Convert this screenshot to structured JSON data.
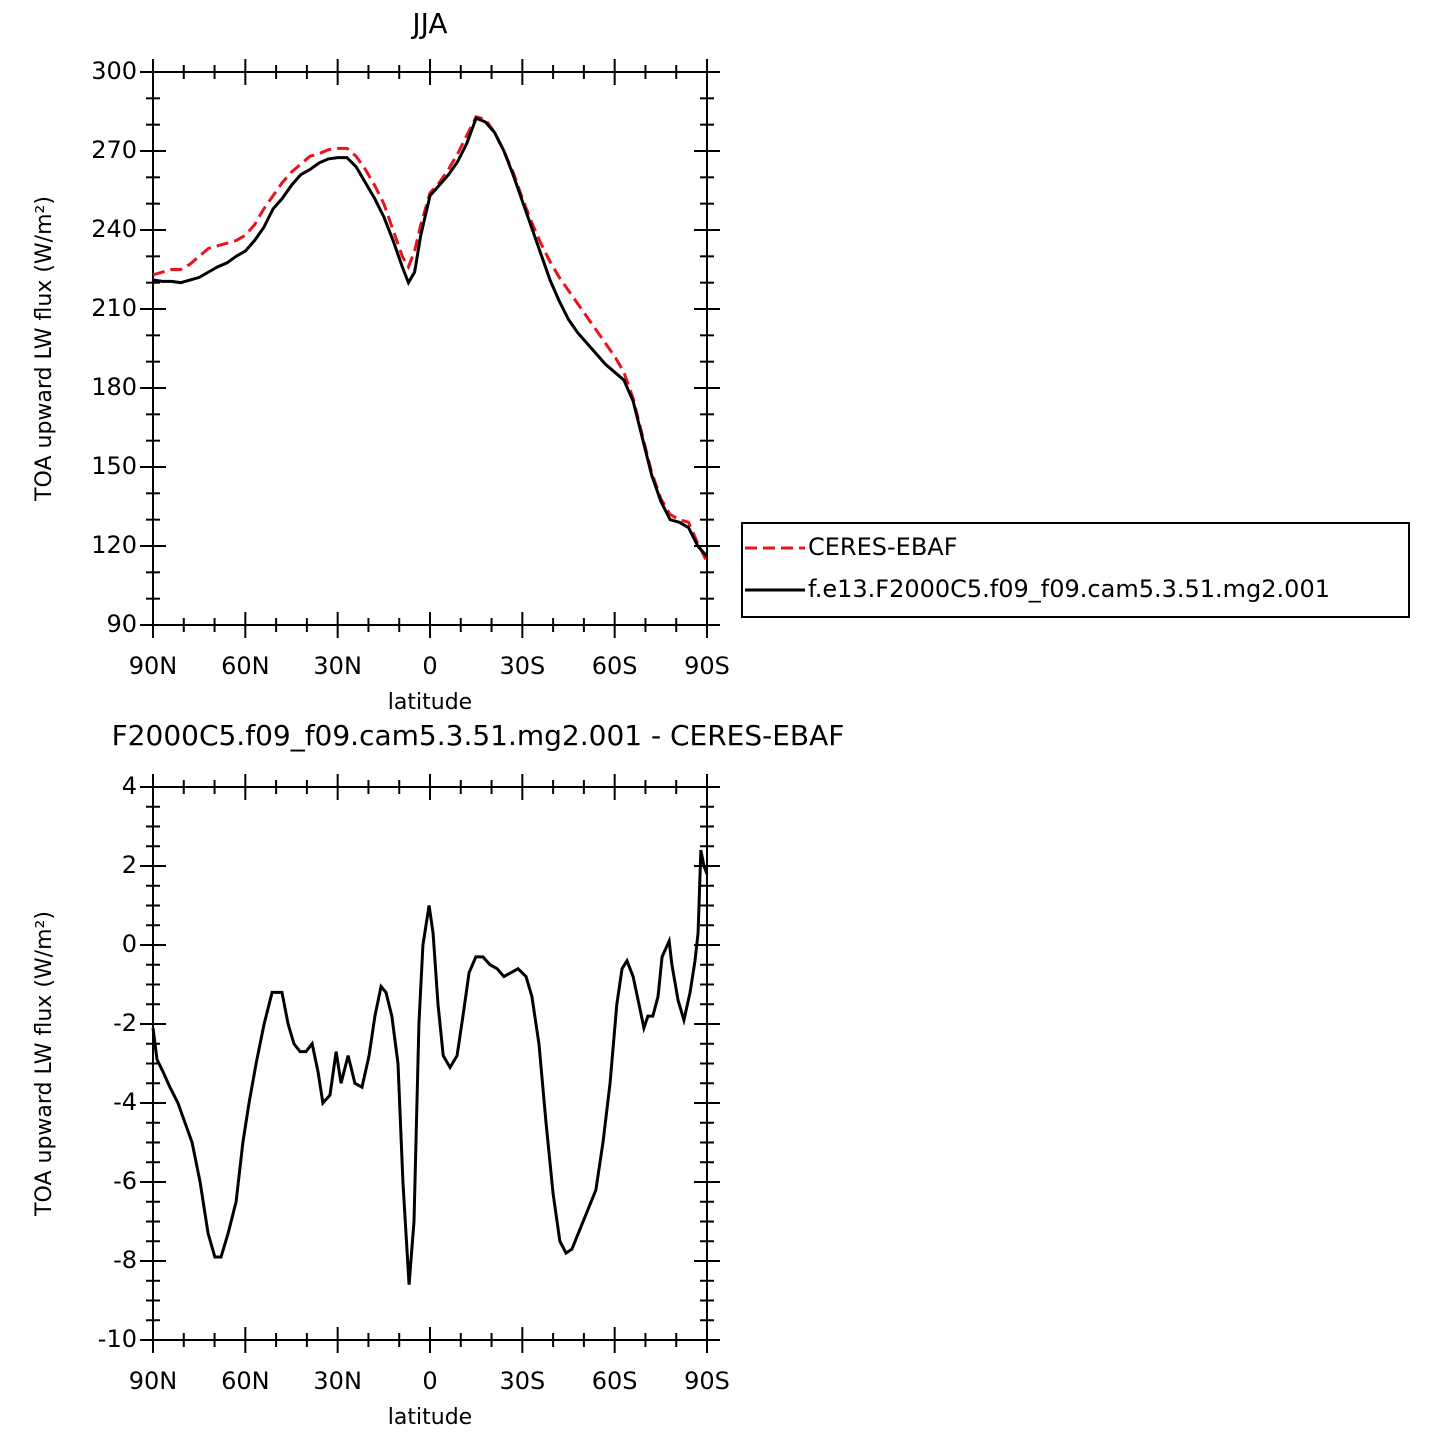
{
  "chart_data": [
    {
      "type": "line",
      "title": "JJA",
      "x_label": "latitude",
      "y_label": "TOA upward LW flux (W/m²)",
      "x": [
        90,
        87,
        84,
        81,
        78,
        75,
        72,
        69,
        66,
        63,
        60,
        57,
        54,
        51,
        48,
        45,
        42,
        39,
        36,
        33,
        30,
        27,
        24,
        21,
        18,
        15,
        12,
        9,
        7,
        5,
        3,
        0,
        -3,
        -6,
        -9,
        -12,
        -15,
        -18,
        -21,
        -24,
        -27,
        -30,
        -33,
        -36,
        -39,
        -42,
        -45,
        -48,
        -51,
        -54,
        -57,
        -60,
        -63,
        -66,
        -69,
        -72,
        -75,
        -78,
        -81,
        -84,
        -87,
        -90
      ],
      "series": [
        {
          "name": "CERES-EBAF",
          "color": "#e8141b",
          "line_style": "dashed",
          "values": [
            223,
            224,
            225,
            225,
            227,
            230,
            233,
            234,
            235,
            236,
            238,
            242,
            248,
            253,
            258,
            262,
            265,
            268,
            269,
            270.5,
            271,
            271,
            268,
            263,
            257,
            250,
            240,
            230,
            226,
            232,
            242,
            254,
            258,
            263,
            269,
            276,
            283,
            282,
            277,
            270,
            262,
            252,
            243,
            235,
            228,
            222,
            217,
            212,
            207,
            202,
            197,
            192,
            186,
            176,
            162,
            148,
            138,
            132,
            130,
            129,
            121,
            114
          ]
        },
        {
          "name": "f.e13.F2000C5.f09_f09.cam5.3.51.mg2.001",
          "color": "#000000",
          "line_style": "solid",
          "values": [
            221,
            220.5,
            220.5,
            220,
            221,
            222,
            224,
            226,
            227.5,
            230,
            232,
            236,
            241,
            248,
            252,
            257,
            261,
            263,
            265.5,
            267,
            267.5,
            267.5,
            264,
            258,
            252,
            245,
            236,
            226,
            220,
            224,
            238,
            253,
            257,
            261,
            266,
            273,
            282.5,
            281,
            277,
            270,
            261,
            251,
            241,
            231,
            221,
            213,
            206,
            201,
            197,
            193,
            189,
            186,
            183,
            175,
            161,
            147,
            137,
            130,
            129,
            127,
            120,
            116
          ]
        }
      ],
      "xlim": [
        90,
        -90
      ],
      "xticks": [
        {
          "value": 90,
          "label": "90N"
        },
        {
          "value": 60,
          "label": "60N"
        },
        {
          "value": 30,
          "label": "30N"
        },
        0,
        {
          "value": -30,
          "label": "30S"
        },
        {
          "value": -60,
          "label": "60S"
        },
        {
          "value": -90,
          "label": "90S"
        }
      ],
      "ylim": [
        90,
        300
      ],
      "yticks": [
        90,
        120,
        150,
        180,
        210,
        240,
        270,
        300
      ],
      "grid": false,
      "legend": "right"
    },
    {
      "type": "line",
      "title": "F2000C5.f09_f09.cam5.3.51.mg2.001 - CERES-EBAF",
      "x_label": "latitude",
      "y_label": "TOA upward LW flux (W/m²)",
      "x": [
        90,
        88.7,
        86.8,
        84.5,
        81.9,
        79.6,
        77.3,
        74.7,
        72.1,
        69.9,
        67.9,
        65.6,
        63,
        60.8,
        58.8,
        56.5,
        53.9,
        51.3,
        48.1,
        46.1,
        44.2,
        42.2,
        40.3,
        38.3,
        36.4,
        34.8,
        32.5,
        30.5,
        28.9,
        26.6,
        24.4,
        22.1,
        19.8,
        17.9,
        15.9,
        14.3,
        12.4,
        10.4,
        8.8,
        6.8,
        5.2,
        3.6,
        2.3,
        0.3,
        -1,
        -2.6,
        -4.3,
        -6.5,
        -8.8,
        -10.7,
        -12.7,
        -14.9,
        -17.2,
        -19.5,
        -21.8,
        -24,
        -26.3,
        -28.6,
        -31.2,
        -33.1,
        -35.4,
        -37.7,
        -40,
        -42.2,
        -44.2,
        -46.1,
        -48.7,
        -51.3,
        -53.9,
        -56.2,
        -58.5,
        -60.7,
        -62.4,
        -64,
        -66,
        -67.9,
        -69.5,
        -70.8,
        -72.4,
        -74.1,
        -75.4,
        -77.7,
        -78.6,
        -80.6,
        -82.5,
        -84.5,
        -86.1,
        -87.1,
        -88,
        -89,
        -90
      ],
      "values": [
        -2.1,
        -2.9,
        -3.2,
        -3.6,
        -4,
        -4.5,
        -5,
        -6,
        -7.3,
        -7.9,
        -7.9,
        -7.3,
        -6.5,
        -5,
        -4,
        -3,
        -2,
        -1.2,
        -1.2,
        -2,
        -2.5,
        -2.7,
        -2.7,
        -2.5,
        -3.2,
        -4,
        -3.8,
        -2.7,
        -3.5,
        -2.8,
        -3.5,
        -3.6,
        -2.8,
        -1.8,
        -1.05,
        -1.2,
        -1.8,
        -3,
        -6,
        -8.6,
        -7,
        -2,
        0,
        1,
        0.3,
        -1.5,
        -2.8,
        -3.1,
        -2.8,
        -1.8,
        -0.7,
        -0.3,
        -0.3,
        -0.5,
        -0.6,
        -0.8,
        -0.7,
        -0.6,
        -0.8,
        -1.3,
        -2.5,
        -4.5,
        -6.3,
        -7.5,
        -7.8,
        -7.7,
        -7.2,
        -6.7,
        -6.2,
        -5,
        -3.5,
        -1.5,
        -0.6,
        -0.4,
        -0.8,
        -1.5,
        -2.1,
        -1.8,
        -1.8,
        -1.3,
        -0.3,
        0.1,
        -0.5,
        -1.4,
        -1.9,
        -1.2,
        -0.4,
        0.3,
        2.4,
        2,
        1.8
      ],
      "color": "#000000",
      "xlim": [
        90,
        -90
      ],
      "xticks": [
        {
          "value": 90,
          "label": "90N"
        },
        {
          "value": 60,
          "label": "60N"
        },
        {
          "value": 30,
          "label": "30N"
        },
        0,
        {
          "value": -30,
          "label": "30S"
        },
        {
          "value": -60,
          "label": "60S"
        },
        {
          "value": -90,
          "label": "90S"
        }
      ],
      "ylim": [
        -10,
        4
      ],
      "yticks": [
        -10,
        -8,
        -6,
        -4,
        -2,
        0,
        2,
        4
      ],
      "grid": false
    }
  ]
}
